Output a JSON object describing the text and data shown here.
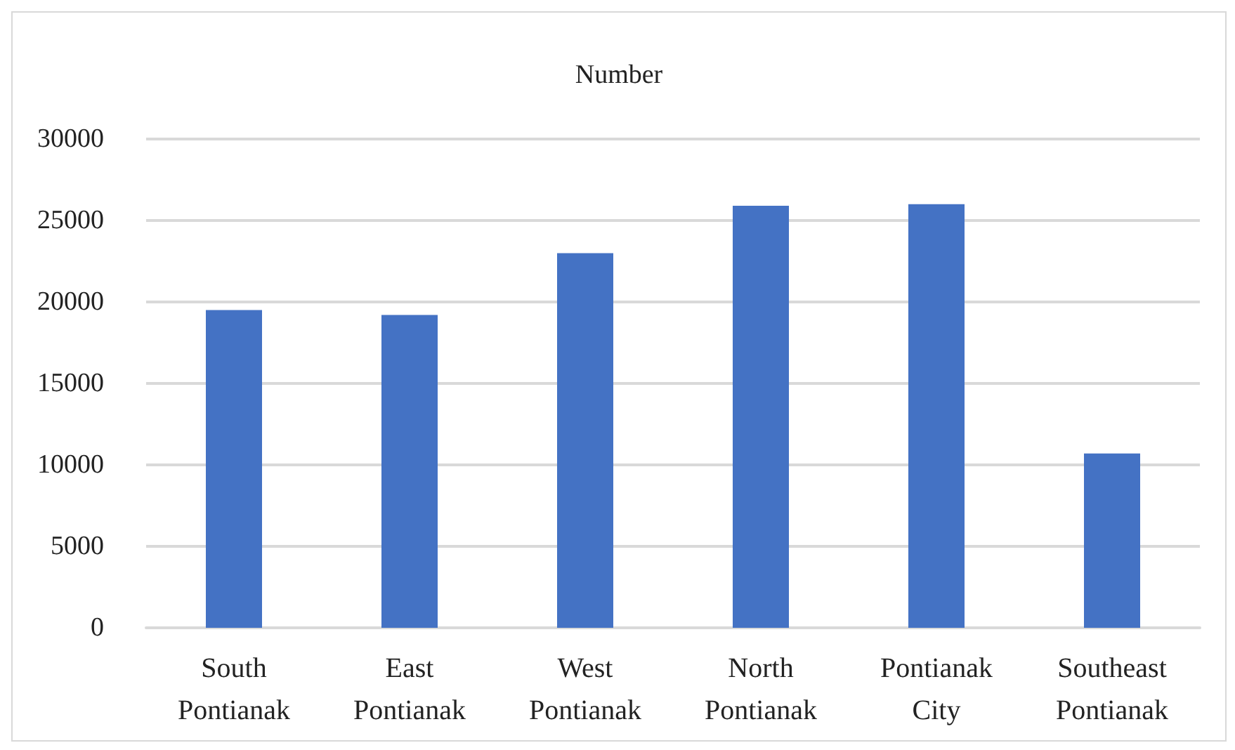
{
  "chart_data": {
    "type": "bar",
    "title": "Number",
    "categories": [
      "South\nPontianak",
      "East\nPontianak",
      "West\nPontianak",
      "North\nPontianak",
      "Pontianak\nCity",
      "Southeast\nPontianak"
    ],
    "values": [
      19500,
      19200,
      23000,
      25900,
      26000,
      10700
    ],
    "color": "#4472c4",
    "ylim": [
      0,
      30000
    ],
    "yticks": [
      0,
      5000,
      10000,
      15000,
      20000,
      25000,
      30000
    ],
    "grid": "y"
  }
}
